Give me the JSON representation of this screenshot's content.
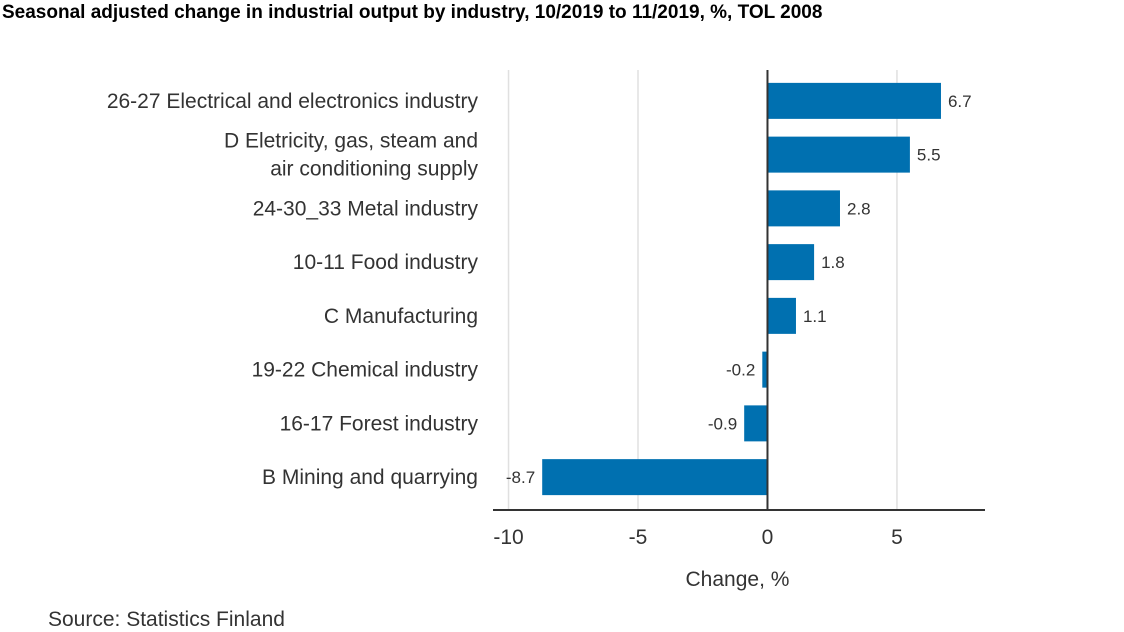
{
  "chart_data": {
    "type": "bar",
    "orientation": "horizontal",
    "title": "Seasonal adjusted change in industrial output by industry, 10/2019 to 11/2019, %, TOL 2008",
    "categories": [
      [
        "26-27 Electrical and electronics industry"
      ],
      [
        "D Eletricity, gas, steam and",
        "air conditioning supply"
      ],
      [
        "24-30_33 Metal industry"
      ],
      [
        "10-11 Food industry"
      ],
      [
        "C Manufacturing"
      ],
      [
        "19-22 Chemical industry"
      ],
      [
        "16-17 Forest industry"
      ],
      [
        "B Mining and quarrying"
      ]
    ],
    "values": [
      6.7,
      5.5,
      2.8,
      1.8,
      1.1,
      -0.2,
      -0.9,
      -8.7
    ],
    "data_labels": [
      "6.7",
      "5.5",
      "2.8",
      "1.8",
      "1.1",
      "-0.2",
      "-0.9",
      "-8.7"
    ],
    "xlabel": "Change, %",
    "xlim": [
      -10.6,
      8.4
    ],
    "xticks": [
      -10,
      -5,
      0,
      5
    ],
    "xtick_labels": [
      "-10",
      "-5",
      "0",
      "5"
    ],
    "grid": "vertical",
    "legend": "none",
    "bar_color": "#0070b0"
  },
  "source": "Source: Statistics Finland"
}
